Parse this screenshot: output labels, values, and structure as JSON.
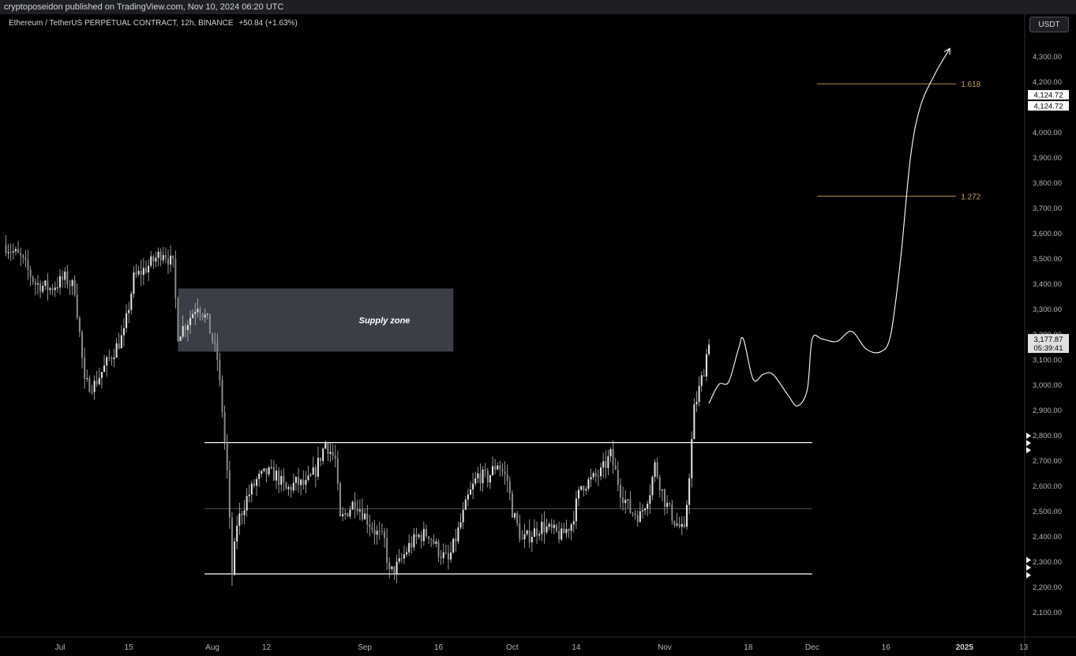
{
  "header": {
    "published": "cryptoposeidon published on TradingView.com, Nov 10, 2024 06:20 UTC"
  },
  "symbol": {
    "title": "Ethereum / TetherUS PERPETUAL CONTRACT, 12h, BINANCE",
    "change": "+50.84 (+1.63%)"
  },
  "currency_button": "USDT",
  "colors": {
    "background": "#000000",
    "candle": "#bdbdbd",
    "fib": "#c9a15a",
    "supply_zone": "#3b3e47",
    "axis_text": "#b2b5be"
  },
  "chart_data": {
    "type": "candlestick",
    "interval": "12h",
    "x_range": [
      "2024-06-20",
      "2025-01-13"
    ],
    "y_range": [
      2030,
      4420
    ],
    "price_ticks": [
      "2,100.00",
      "2,200.00",
      "2,300.00",
      "2,400.00",
      "2,500.00",
      "2,600.00",
      "2,700.00",
      "2,800.00",
      "2,900.00",
      "3,000.00",
      "3,100.00",
      "3,200.00",
      "3,300.00",
      "3,400.00",
      "3,500.00",
      "3,600.00",
      "3,700.00",
      "3,800.00",
      "3,900.00",
      "4,000.00",
      "4,100.00",
      "4,200.00",
      "4,300.00"
    ],
    "x_ticks": [
      {
        "label": "Jul",
        "date": "2024-07-01"
      },
      {
        "label": "15",
        "date": "2024-07-15"
      },
      {
        "label": "Aug",
        "date": "2024-08-01"
      },
      {
        "label": "12",
        "date": "2024-08-12"
      },
      {
        "label": "Sep",
        "date": "2024-09-01"
      },
      {
        "label": "16",
        "date": "2024-09-16"
      },
      {
        "label": "Oct",
        "date": "2024-10-01"
      },
      {
        "label": "14",
        "date": "2024-10-14"
      },
      {
        "label": "Nov",
        "date": "2024-11-01"
      },
      {
        "label": "18",
        "date": "2024-11-18"
      },
      {
        "label": "Dec",
        "date": "2024-12-01"
      },
      {
        "label": "16",
        "date": "2024-12-16"
      },
      {
        "label": "2025",
        "date": "2025-01-01"
      },
      {
        "label": "13",
        "date": "2025-01-13"
      }
    ],
    "price_path": [
      [
        "2024-06-20",
        3550
      ],
      [
        "2024-06-23",
        3500
      ],
      [
        "2024-06-26",
        3400
      ],
      [
        "2024-06-29",
        3380
      ],
      [
        "2024-07-02",
        3420
      ],
      [
        "2024-07-04",
        3380
      ],
      [
        "2024-07-05",
        3200
      ],
      [
        "2024-07-06",
        3000
      ],
      [
        "2024-07-08",
        3000
      ],
      [
        "2024-07-11",
        3100
      ],
      [
        "2024-07-14",
        3200
      ],
      [
        "2024-07-16",
        3420
      ],
      [
        "2024-07-19",
        3470
      ],
      [
        "2024-07-22",
        3530
      ],
      [
        "2024-07-24",
        3470
      ],
      [
        "2024-07-25",
        3200
      ],
      [
        "2024-07-27",
        3250
      ],
      [
        "2024-07-29",
        3320
      ],
      [
        "2024-07-31",
        3250
      ],
      [
        "2024-08-02",
        3100
      ],
      [
        "2024-08-03",
        2900
      ],
      [
        "2024-08-04",
        2650
      ],
      [
        "2024-08-05",
        2250
      ],
      [
        "2024-08-06",
        2450
      ],
      [
        "2024-08-08",
        2550
      ],
      [
        "2024-08-10",
        2620
      ],
      [
        "2024-08-12",
        2650
      ],
      [
        "2024-08-14",
        2640
      ],
      [
        "2024-08-16",
        2580
      ],
      [
        "2024-08-18",
        2610
      ],
      [
        "2024-08-20",
        2600
      ],
      [
        "2024-08-22",
        2660
      ],
      [
        "2024-08-24",
        2770
      ],
      [
        "2024-08-26",
        2700
      ],
      [
        "2024-08-27",
        2460
      ],
      [
        "2024-08-30",
        2540
      ],
      [
        "2024-09-01",
        2480
      ],
      [
        "2024-09-03",
        2420
      ],
      [
        "2024-09-05",
        2380
      ],
      [
        "2024-09-06",
        2250
      ],
      [
        "2024-09-08",
        2290
      ],
      [
        "2024-09-10",
        2360
      ],
      [
        "2024-09-12",
        2400
      ],
      [
        "2024-09-14",
        2410
      ],
      [
        "2024-09-16",
        2340
      ],
      [
        "2024-09-18",
        2300
      ],
      [
        "2024-09-20",
        2420
      ],
      [
        "2024-09-22",
        2550
      ],
      [
        "2024-09-24",
        2640
      ],
      [
        "2024-09-26",
        2630
      ],
      [
        "2024-09-28",
        2690
      ],
      [
        "2024-09-30",
        2620
      ],
      [
        "2024-10-01",
        2500
      ],
      [
        "2024-10-03",
        2380
      ],
      [
        "2024-10-05",
        2410
      ],
      [
        "2024-10-07",
        2440
      ],
      [
        "2024-10-09",
        2420
      ],
      [
        "2024-10-11",
        2400
      ],
      [
        "2024-10-13",
        2450
      ],
      [
        "2024-10-15",
        2600
      ],
      [
        "2024-10-17",
        2620
      ],
      [
        "2024-10-19",
        2650
      ],
      [
        "2024-10-21",
        2720
      ],
      [
        "2024-10-23",
        2580
      ],
      [
        "2024-10-25",
        2500
      ],
      [
        "2024-10-27",
        2480
      ],
      [
        "2024-10-29",
        2580
      ],
      [
        "2024-10-30",
        2680
      ],
      [
        "2024-11-01",
        2540
      ],
      [
        "2024-11-03",
        2460
      ],
      [
        "2024-11-05",
        2410
      ],
      [
        "2024-11-06",
        2650
      ],
      [
        "2024-11-07",
        2900
      ],
      [
        "2024-11-08",
        2980
      ],
      [
        "2024-11-09",
        3060
      ],
      [
        "2024-11-10",
        3177.87
      ]
    ],
    "last_price": "3,177.87",
    "countdown": "05:39:41",
    "projection_price": "4,124.72",
    "levels": [
      {
        "name": "range-top",
        "price": 2770
      },
      {
        "name": "range-mid",
        "price": 2508
      },
      {
        "name": "range-bottom",
        "price": 2250
      }
    ],
    "supply_zone": {
      "label": "Supply zone",
      "from": "2024-07-25",
      "to": "2024-09-19",
      "top": 3380,
      "bottom": 3130
    },
    "fib_levels": [
      {
        "label": "1.618",
        "price": 4190
      },
      {
        "label": "1.272",
        "price": 3745
      }
    ],
    "projection_path": [
      [
        "2024-11-10",
        2925
      ],
      [
        "2024-11-12",
        3000
      ],
      [
        "2024-11-14",
        3010
      ],
      [
        "2024-11-16",
        3140
      ],
      [
        "2024-11-17",
        3180
      ],
      [
        "2024-11-19",
        3020
      ],
      [
        "2024-11-21",
        3040
      ],
      [
        "2024-11-23",
        3040
      ],
      [
        "2024-11-26",
        2960
      ],
      [
        "2024-11-28",
        2915
      ],
      [
        "2024-11-30",
        2980
      ],
      [
        "2024-12-01",
        3180
      ],
      [
        "2024-12-03",
        3180
      ],
      [
        "2024-12-06",
        3170
      ],
      [
        "2024-12-09",
        3210
      ],
      [
        "2024-12-12",
        3140
      ],
      [
        "2024-12-15",
        3130
      ],
      [
        "2024-12-17",
        3200
      ],
      [
        "2024-12-19",
        3500
      ],
      [
        "2024-12-21",
        3900
      ],
      [
        "2024-12-23",
        4100
      ],
      [
        "2024-12-26",
        4230
      ],
      [
        "2024-12-29",
        4330
      ]
    ]
  }
}
